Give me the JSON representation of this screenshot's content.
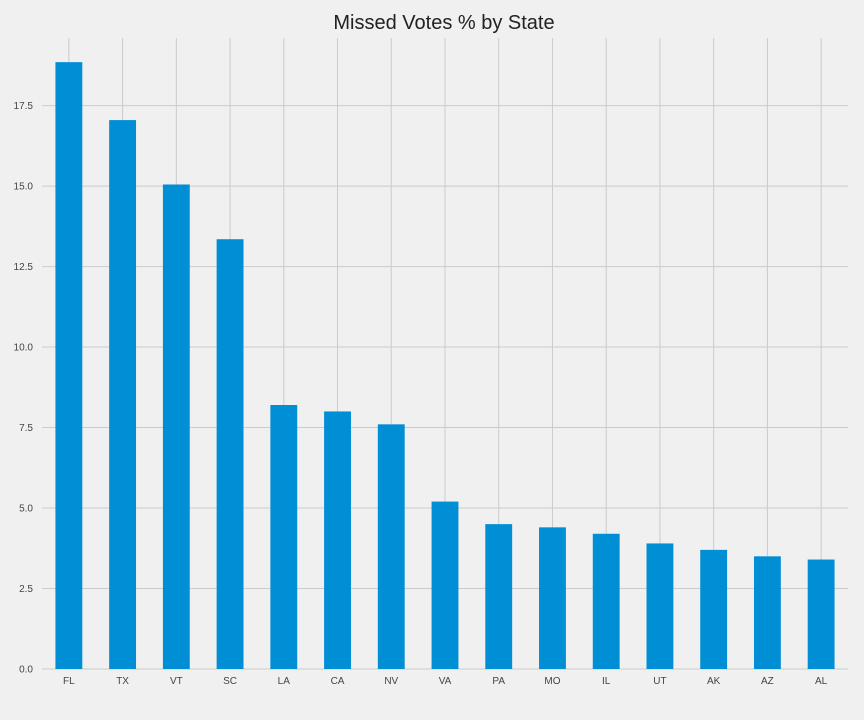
{
  "chart_data": {
    "type": "bar",
    "title": "Missed Votes % by State",
    "xlabel": "",
    "ylabel": "",
    "categories": [
      "FL",
      "TX",
      "VT",
      "SC",
      "LA",
      "CA",
      "NV",
      "VA",
      "PA",
      "MO",
      "IL",
      "UT",
      "AK",
      "AZ",
      "AL"
    ],
    "values": [
      18.85,
      17.05,
      15.05,
      13.35,
      8.2,
      8.0,
      7.6,
      5.2,
      4.5,
      4.4,
      4.2,
      3.9,
      3.7,
      3.5,
      3.4
    ],
    "ylim": [
      0,
      19.6
    ],
    "yticks": [
      0,
      2.5,
      5,
      7.5,
      10,
      12.5,
      15,
      17.5
    ],
    "ytick_labels": [
      "0.0",
      "2.5",
      "5.0",
      "7.5",
      "10.0",
      "12.5",
      "15.0",
      "17.5"
    ],
    "grid": true,
    "legend": "none",
    "colors": {
      "bar": "#008fd5",
      "background": "#f0f0f0",
      "grid": "#cbcbcb",
      "text": "#222222"
    }
  }
}
